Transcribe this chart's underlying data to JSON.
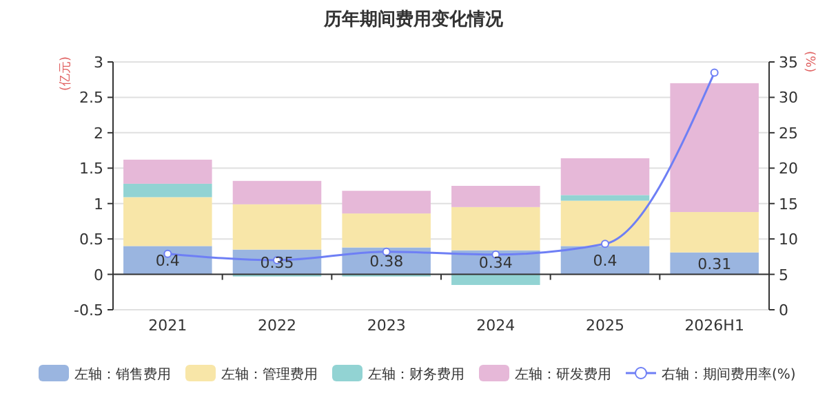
{
  "chart_data": {
    "type": "bar",
    "title": "历年期间费用变化情况",
    "ylabel": "(亿元)",
    "y2label": "(%)",
    "categories": [
      "2021",
      "2022",
      "2023",
      "2024",
      "2025",
      "2026H1"
    ],
    "stacked": true,
    "ylim": [
      -0.5,
      3
    ],
    "yticks": [
      -0.5,
      0,
      0.5,
      1,
      1.5,
      2,
      2.5,
      3
    ],
    "y2lim": [
      0,
      35
    ],
    "y2ticks": [
      0,
      5,
      10,
      15,
      20,
      25,
      30,
      35
    ],
    "grid": "y",
    "legend": "bottom",
    "series": [
      {
        "name": "左轴：销售费用",
        "color": "#9ab5e0",
        "values": [
          0.4,
          0.35,
          0.38,
          0.34,
          0.4,
          0.31
        ],
        "value_labels": [
          "0.4",
          "0.35",
          "0.38",
          "0.34",
          "0.4",
          "0.31"
        ]
      },
      {
        "name": "左轴：管理费用",
        "color": "#f8e6a8",
        "values": [
          0.69,
          0.64,
          0.48,
          0.61,
          0.64,
          0.57
        ]
      },
      {
        "name": "左轴：财务费用",
        "color": "#92d3d3",
        "values": [
          0.19,
          -0.03,
          -0.03,
          -0.15,
          0.08,
          0
        ]
      },
      {
        "name": "左轴：研发费用",
        "color": "#e6b8d8",
        "values": [
          0.34,
          0.33,
          0.32,
          0.3,
          0.52,
          1.82
        ]
      },
      {
        "name": "右轴：期间费用率(%)",
        "type": "line",
        "axis": "y2",
        "color": "#6e7ff5",
        "marker": "circle",
        "values": [
          7.9,
          7.0,
          8.2,
          7.8,
          9.3,
          33.5
        ]
      }
    ]
  }
}
